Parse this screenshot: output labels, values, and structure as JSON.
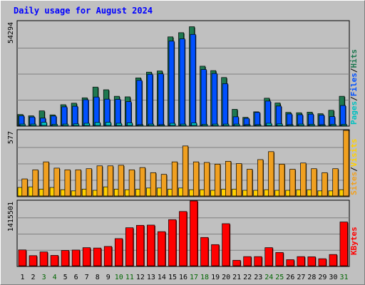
{
  "colors": {
    "background": "#c0c0c0",
    "title": "#0000ff",
    "pages": "#00c0c0",
    "files": "#0050ff",
    "hits": "#1e7850",
    "visits": "#f0a020",
    "sites": "#ffd000",
    "kbytes": "#ff0000",
    "weekend_label": "#006600"
  },
  "chart_data": [
    {
      "type": "bar",
      "title": "Daily usage for August 2024",
      "panel": "hits-files-pages",
      "ylabel_max": "54294",
      "ymax": 54294,
      "legend": [
        "Pages",
        "/",
        "Files",
        "/",
        "Hits"
      ],
      "categories": [
        "1",
        "2",
        "3",
        "4",
        "5",
        "6",
        "7",
        "8",
        "9",
        "10",
        "11",
        "12",
        "13",
        "14",
        "15",
        "16",
        "17",
        "18",
        "19",
        "20",
        "21",
        "22",
        "23",
        "24",
        "25",
        "26",
        "27",
        "28",
        "29",
        "30",
        "31"
      ],
      "series": [
        {
          "name": "Hits",
          "values": [
            5700,
            5000,
            7600,
            5500,
            10800,
            11600,
            14400,
            20000,
            18600,
            15200,
            14900,
            24800,
            27800,
            28400,
            46200,
            48400,
            51500,
            30900,
            28600,
            25000,
            8400,
            4200,
            7100,
            14200,
            11700,
            6800,
            6600,
            6900,
            6100,
            7900,
            15200
          ]
        },
        {
          "name": "Files",
          "values": [
            5000,
            4400,
            3800,
            4900,
            9700,
            10000,
            13400,
            14800,
            13700,
            13600,
            12400,
            23500,
            26700,
            26900,
            44000,
            45200,
            47500,
            29200,
            27100,
            21800,
            4500,
            3700,
            6800,
            12700,
            10100,
            6000,
            5600,
            5900,
            5400,
            4600,
            10400
          ]
        },
        {
          "name": "Pages",
          "values": [
            700,
            700,
            1600,
            600,
            700,
            800,
            1100,
            1500,
            1600,
            1100,
            1300,
            400,
            700,
            400,
            1100,
            700,
            1300,
            600,
            700,
            700,
            700,
            400,
            400,
            1100,
            800,
            400,
            700,
            600,
            400,
            600,
            600
          ]
        }
      ]
    },
    {
      "type": "bar",
      "panel": "visits-sites",
      "ylabel_max": "577",
      "ymax": 577,
      "legend": [
        "Sites",
        "/",
        "Visits"
      ],
      "series": [
        {
          "name": "Visits",
          "values": [
            150,
            230,
            300,
            245,
            230,
            230,
            240,
            265,
            265,
            270,
            230,
            250,
            205,
            190,
            300,
            440,
            300,
            295,
            280,
            305,
            285,
            235,
            320,
            390,
            280,
            235,
            290,
            240,
            205,
            240,
            577
          ]
        },
        {
          "name": "Sites",
          "values": [
            75,
            80,
            60,
            75,
            55,
            45,
            60,
            50,
            80,
            60,
            55,
            60,
            70,
            70,
            60,
            70,
            55,
            55,
            50,
            60,
            60,
            50,
            50,
            55,
            50,
            50,
            55,
            55,
            45,
            45,
            55
          ]
        }
      ]
    },
    {
      "type": "bar",
      "panel": "kbytes",
      "ylabel_max": "1415501",
      "ymax": 1415501,
      "legend": [
        "KBytes"
      ],
      "series": [
        {
          "name": "KBytes",
          "values": [
            346000,
            221000,
            302000,
            226000,
            334000,
            343000,
            395000,
            387000,
            422000,
            593000,
            830000,
            883000,
            888000,
            745000,
            1007000,
            1185000,
            1415501,
            618000,
            462000,
            919000,
            120000,
            200000,
            200000,
            396000,
            290000,
            133000,
            200000,
            196000,
            154000,
            246000,
            956000
          ]
        }
      ]
    }
  ],
  "x_label_weekend_days": [
    "3",
    "4",
    "10",
    "11",
    "17",
    "18",
    "24",
    "25",
    "31"
  ]
}
